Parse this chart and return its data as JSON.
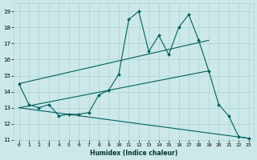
{
  "xlabel": "Humidex (Indice chaleur)",
  "xlim": [
    -0.5,
    23.5
  ],
  "ylim": [
    11,
    19.5
  ],
  "yticks": [
    11,
    12,
    13,
    14,
    15,
    16,
    17,
    18,
    19
  ],
  "xticks": [
    0,
    1,
    2,
    3,
    4,
    5,
    6,
    7,
    8,
    9,
    10,
    11,
    12,
    13,
    14,
    15,
    16,
    17,
    18,
    19,
    20,
    21,
    22,
    23
  ],
  "bg_color": "#cce8e8",
  "grid_color": "#aad4d4",
  "line_color": "#006060",
  "main_line": {
    "x": [
      0,
      1,
      2,
      3,
      4,
      5,
      6,
      7,
      8,
      9,
      10,
      11,
      12,
      13,
      14,
      15,
      16,
      17,
      18,
      19,
      20,
      21,
      22,
      23
    ],
    "y": [
      14.5,
      13.2,
      13.0,
      13.2,
      12.5,
      12.6,
      12.6,
      12.7,
      13.8,
      14.1,
      15.1,
      18.5,
      19.0,
      16.5,
      17.5,
      16.3,
      18.0,
      18.8,
      17.2,
      15.3,
      13.2,
      12.5,
      11.2,
      11.1
    ]
  },
  "trend_lines": [
    {
      "x": [
        0,
        19
      ],
      "y": [
        14.5,
        17.2
      ]
    },
    {
      "x": [
        0,
        19
      ],
      "y": [
        13.0,
        15.3
      ]
    },
    {
      "x": [
        0,
        23
      ],
      "y": [
        13.0,
        11.1
      ]
    }
  ]
}
